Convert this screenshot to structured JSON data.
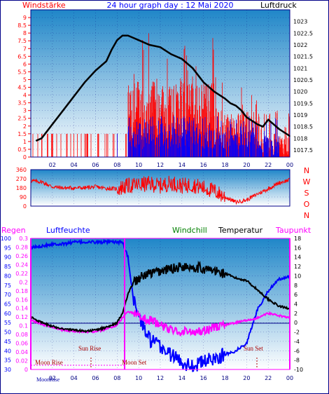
{
  "header": {
    "left_label": "Windstärke",
    "title": "24 hour graph day : 12 Mai 2020",
    "right_label": "Luftdruck"
  },
  "legend": {
    "regen": "Regen",
    "luftfeuchte": "Luftfeuchte",
    "windchill": "Windchill",
    "temperatur": "Temperatur",
    "taupunkt": "Taupunkt"
  },
  "direction_letters": [
    "N",
    "W",
    "S",
    "O",
    "N"
  ],
  "annotations": {
    "moon_rise": "Moon Rise",
    "sun_rise": "Sun Rise",
    "moon_set": "Moon Set",
    "sun_set": "Sun Set",
    "bottom_left": "MoonRise"
  },
  "colors": {
    "background_top": "#1f86c8",
    "background_bottom": "#ffffff",
    "wind": "#ff0000",
    "gust": "#0000ff",
    "pressure": "#000000",
    "direction": "#ff0000",
    "humidity": "#0000ff",
    "temperature": "#000000",
    "dewpoint": "#ff00ff",
    "windchill": "#008000"
  },
  "chart_data": [
    {
      "type": "line",
      "x": [
        0.5,
        1,
        2,
        3,
        4,
        5,
        6,
        7,
        7.5,
        8,
        8.5,
        9,
        9.5,
        10,
        11,
        12,
        13,
        14,
        15,
        16,
        17,
        18,
        18.5,
        19,
        19.5,
        20,
        21,
        21.5,
        22,
        22.5,
        23,
        24
      ],
      "series": [
        {
          "name": "Luftdruck",
          "values": [
            1017.9,
            1018.0,
            1018.6,
            1019.2,
            1019.8,
            1020.4,
            1020.9,
            1021.3,
            1021.8,
            1022.2,
            1022.4,
            1022.4,
            1022.3,
            1022.2,
            1022.0,
            1021.9,
            1021.6,
            1021.4,
            1021.0,
            1020.4,
            1020.0,
            1019.7,
            1019.5,
            1019.4,
            1019.2,
            1018.9,
            1018.6,
            1018.5,
            1018.8,
            1018.6,
            1018.4,
            1018.1
          ]
        }
      ],
      "wind_axis": {
        "label": "Windstärke",
        "ylim": [
          0,
          9.5
        ],
        "ticks": [
          "0",
          "0.5",
          "1",
          "1.5",
          "2",
          "2.5",
          "3",
          "3.5",
          "4",
          "4.5",
          "5",
          "5.5",
          "6",
          "6.5",
          "7",
          "7.5",
          "8",
          "8.5",
          "9"
        ]
      },
      "pressure_axis": {
        "label": "Luftdruck",
        "ylim": [
          1017.2,
          1023.5
        ],
        "ticks": [
          "1017.5",
          "1018",
          "1018.5",
          "1019",
          "1019.5",
          "1020",
          "1020.5",
          "1021",
          "1021.5",
          "1022",
          "1022.5",
          "1023",
          "1023.5"
        ]
      },
      "x_ticks": [
        "02",
        "04",
        "06",
        "08",
        "10",
        "12",
        "14",
        "16",
        "18",
        "20",
        "22",
        "00"
      ],
      "grid": true
    },
    {
      "type": "line",
      "ylim": [
        0,
        360
      ],
      "y_ticks": [
        "0",
        "90",
        "180",
        "270",
        "360"
      ],
      "x": [
        0,
        1,
        2,
        3,
        4,
        5,
        6,
        7,
        8,
        9,
        10,
        11,
        12,
        13,
        14,
        15,
        16,
        17,
        18,
        19,
        20,
        21,
        22,
        23,
        24
      ],
      "series": [
        {
          "name": "Windrichtung",
          "values": [
            250,
            240,
            190,
            180,
            180,
            180,
            190,
            175,
            170,
            200,
            210,
            220,
            200,
            230,
            200,
            210,
            180,
            150,
            90,
            40,
            60,
            120,
            170,
            230,
            260
          ]
        }
      ]
    },
    {
      "type": "line",
      "x": [
        0,
        1,
        2,
        3,
        4,
        5,
        6,
        7,
        8,
        8.5,
        9,
        9.5,
        10,
        11,
        12,
        13,
        14,
        15,
        16,
        17,
        18,
        19,
        20,
        21,
        22,
        23,
        24
      ],
      "temperature_axis": {
        "ylim": [
          -10,
          18
        ],
        "ticks": [
          "18",
          "16",
          "14",
          "12",
          "10",
          "8",
          "6",
          "4",
          "2",
          "0",
          "-2",
          "-4",
          "-6",
          "-8",
          "-10"
        ]
      },
      "humidity_axis": {
        "ylim": [
          30,
          100
        ],
        "ticks": [
          "100",
          "95",
          "90",
          "85",
          "80",
          "75",
          "70",
          "65",
          "60",
          "55",
          "50",
          "45",
          "40",
          "35",
          "30"
        ]
      },
      "rain_axis": {
        "ylim": [
          0,
          0.3
        ],
        "ticks": [
          "0.3",
          "0.28",
          "0.26",
          "0.24",
          "0.22",
          "0.2",
          "0.18",
          "0.16",
          "0.14",
          "0.12",
          "0.1",
          "0.08",
          "0.06",
          "0.04",
          "0.02",
          "0"
        ]
      },
      "x_ticks": [
        "02",
        "04",
        "06",
        "08",
        "10",
        "12",
        "14",
        "16",
        "18",
        "20",
        "22",
        "00"
      ],
      "series": [
        {
          "name": "Temperatur",
          "values": [
            1.2,
            0.0,
            -0.8,
            -1.3,
            -1.6,
            -1.8,
            -1.6,
            -1.0,
            0.0,
            2.0,
            6.0,
            8.5,
            9.5,
            10.5,
            11.0,
            11.5,
            12.0,
            12.0,
            11.5,
            11.0,
            10.5,
            9.5,
            9.0,
            7.0,
            5.0,
            3.5,
            3.0
          ]
        },
        {
          "name": "Luftfeuchte",
          "values": [
            95,
            96,
            97,
            97,
            98,
            98,
            98,
            98,
            98,
            98,
            90,
            68,
            58,
            46,
            42,
            38,
            34,
            32,
            34,
            36,
            38,
            40,
            44,
            62,
            72,
            78,
            80
          ]
        },
        {
          "name": "Taupunkt",
          "values": [
            0.5,
            -0.3,
            -1.0,
            -1.5,
            -1.8,
            -2.0,
            -1.9,
            -1.4,
            -0.5,
            1.0,
            2.5,
            2.0,
            1.5,
            0.5,
            -0.5,
            -1.5,
            -2.0,
            -2.0,
            -1.5,
            -1.0,
            -0.5,
            0.0,
            0.5,
            1.0,
            2.0,
            1.5,
            1.0
          ]
        },
        {
          "name": "Windchill",
          "values": [
            1.2,
            0.0,
            -0.8,
            -1.3,
            -1.6,
            -1.8,
            -1.6,
            -1.0,
            0.0,
            2.0,
            6.0,
            8.5,
            9.5,
            10.5,
            11.0,
            11.5,
            12.0,
            12.0,
            11.5,
            11.0,
            10.5,
            9.5,
            9.0,
            7.0,
            5.0,
            3.5,
            3.0
          ]
        }
      ],
      "grid": true
    }
  ]
}
